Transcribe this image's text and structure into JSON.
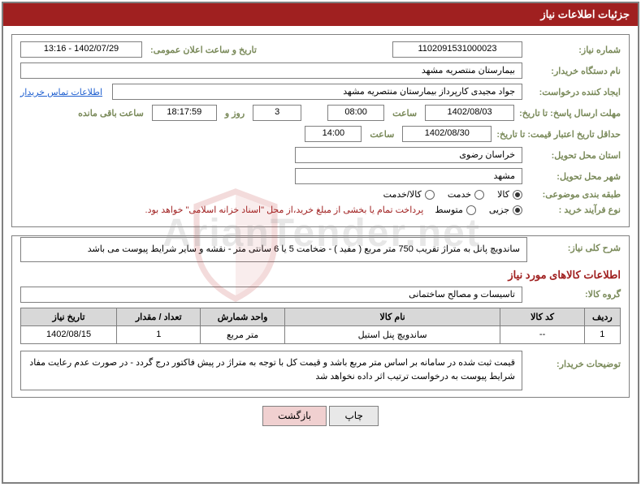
{
  "header": {
    "title": "جزئیات اطلاعات نیاز"
  },
  "form": {
    "need_number_label": "شماره نیاز:",
    "need_number": "1102091531000023",
    "announce_label": "تاریخ و ساعت اعلان عمومی:",
    "announce_value": "1402/07/29 - 13:16",
    "buyer_org_label": "نام دستگاه خریدار:",
    "buyer_org": "بیمارستان منتصریه مشهد",
    "requester_label": "ایجاد کننده درخواست:",
    "requester": "جواد مجیدی کارپرداز بیمارستان منتصریه مشهد",
    "contact_link": "اطلاعات تماس خریدار",
    "reply_deadline_label": "مهلت ارسال پاسخ: تا تاریخ:",
    "reply_date": "1402/08/03",
    "time_label": "ساعت",
    "reply_time": "08:00",
    "days_remaining": "3",
    "days_text": "روز و",
    "hours_remaining": "18:17:59",
    "hours_text": "ساعت باقی مانده",
    "validity_label": "حداقل تاریخ اعتبار قیمت: تا تاریخ:",
    "validity_date": "1402/08/30",
    "validity_time": "14:00",
    "province_label": "استان محل تحویل:",
    "province": "خراسان رضوی",
    "city_label": "شهر محل تحویل:",
    "city": "مشهد",
    "category_label": "طبقه بندی موضوعی:",
    "cat_goods": "کالا",
    "cat_service": "خدمت",
    "cat_both": "کالا/خدمت",
    "process_label": "نوع فرآیند خرید :",
    "proc_minor": "جزیی",
    "proc_medium": "متوسط",
    "payment_note": "پرداخت تمام یا بخشی از مبلغ خرید،از محل \"اسناد خزانه اسلامی\" خواهد بود."
  },
  "description": {
    "title_label": "شرح کلی نیاز:",
    "text": "ساندویچ پانل به متراژ تقریب 750 متر مربع ( مفید ) - ضخامت 5 یا 6 سانتی متر - نقشه و سایر شرایط پیوست می باشد"
  },
  "goods_section": {
    "title": "اطلاعات کالاهای مورد نیاز",
    "group_label": "گروه کالا:",
    "group_value": "تاسیسات و مصالح ساختمانی"
  },
  "table": {
    "columns": [
      "ردیف",
      "کد کالا",
      "نام کالا",
      "واحد شمارش",
      "تعداد / مقدار",
      "تاریخ نیاز"
    ],
    "col_widths": [
      "6%",
      "14%",
      "36%",
      "14%",
      "14%",
      "16%"
    ],
    "rows": [
      [
        "1",
        "--",
        "ساندویچ پنل استیل",
        "متر مربع",
        "1",
        "1402/08/15"
      ]
    ]
  },
  "buyer_note": {
    "label": "توضیحات خریدار:",
    "text": "قیمت ثبت شده در سامانه بر اساس متر مربع باشد و قیمت کل با توجه به متراژ در پیش فاکتور درج گردد  -  در صورت عدم رعایت مفاد شرایط پیوست به درخواست ترتیب اثر داده نخواهد شد"
  },
  "buttons": {
    "print": "چاپ",
    "return": "بازگشت"
  },
  "colors": {
    "header_bg": "#a02020",
    "label_color": "#7a8a5a",
    "border": "#808080",
    "link": "#2060d0"
  }
}
